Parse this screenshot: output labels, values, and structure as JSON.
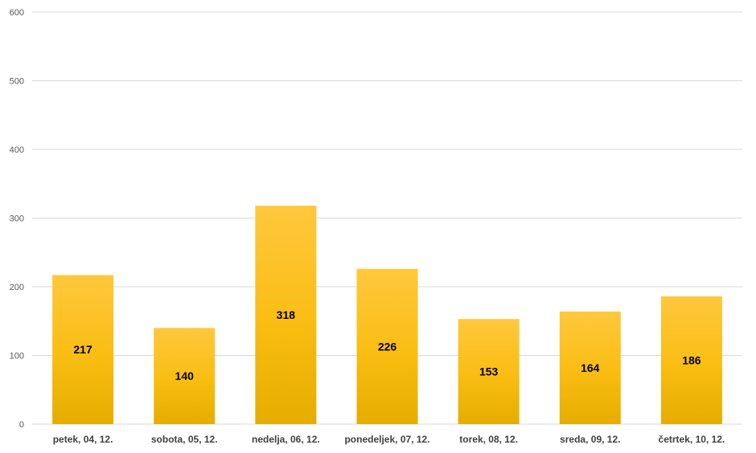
{
  "chart_data": {
    "type": "bar",
    "categories": [
      "petek, 04, 12.",
      "sobota, 05, 12.",
      "nedelja, 06, 12.",
      "ponedeljek, 07, 12.",
      "torek, 08, 12.",
      "sreda, 09, 12.",
      "četrtek, 10, 12."
    ],
    "values": [
      217,
      140,
      318,
      226,
      153,
      164,
      186
    ],
    "data_labels": [
      "217",
      "140",
      "318",
      "226",
      "153",
      "164",
      "186"
    ],
    "y_ticks": [
      "0",
      "100",
      "200",
      "300",
      "400",
      "500",
      "600"
    ],
    "title": "",
    "xlabel": "",
    "ylabel": "",
    "ylim": [
      0,
      600
    ],
    "grid": true,
    "legend": "none",
    "bar_color_top": "#ffc83d",
    "bar_color_bottom": "#e6ac00"
  }
}
